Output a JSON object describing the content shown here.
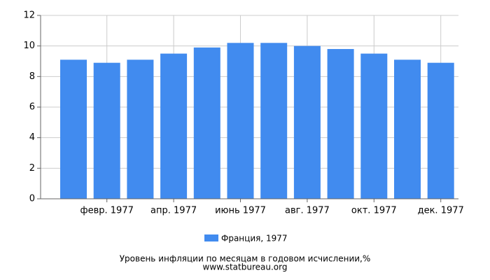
{
  "chart_data": {
    "type": "bar",
    "title": "Уровень инфляции по месяцам в годовом исчислении,%",
    "subtitle": "www.statbureau.org",
    "categories": [
      null,
      "февр. 1977",
      null,
      "апр. 1977",
      null,
      "июнь 1977",
      null,
      "авг. 1977",
      null,
      "окт. 1977",
      null,
      "дек. 1977"
    ],
    "series": [
      {
        "name": "Франция, 1977",
        "color": "#418bef",
        "values": [
          9.1,
          8.9,
          9.1,
          9.5,
          9.9,
          10.2,
          10.2,
          10.0,
          9.8,
          9.5,
          9.1,
          8.9
        ]
      }
    ],
    "ylim": [
      0,
      12
    ],
    "yticks": [
      0,
      2,
      4,
      6,
      8,
      10,
      12
    ],
    "grid": true
  }
}
